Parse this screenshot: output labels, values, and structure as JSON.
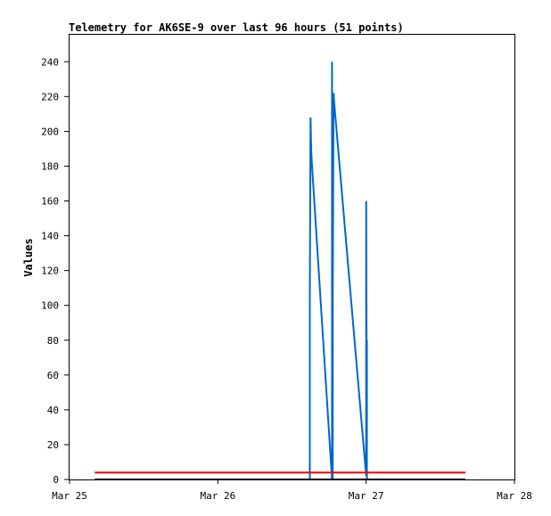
{
  "chart_data": {
    "type": "line",
    "title": "Telemetry for AK6SE-9 over last 96 hours (51 points)",
    "xlabel": "",
    "ylabel": "Values",
    "x_ticks": [
      "Mar 25",
      "Mar 26",
      "Mar 27",
      "Mar 28"
    ],
    "x_range_days": [
      0,
      3
    ],
    "ylim": [
      0,
      256
    ],
    "y_ticks": [
      0,
      20,
      40,
      60,
      80,
      100,
      120,
      140,
      160,
      180,
      200,
      220,
      240
    ],
    "grid": false,
    "legend": "none",
    "series": [
      {
        "color": "#0066cc",
        "points": [
          [
            1.62,
            0
          ],
          [
            1.62,
            104
          ],
          [
            1.625,
            208
          ],
          [
            1.63,
            188
          ],
          [
            1.635,
            180
          ],
          [
            1.77,
            0
          ],
          [
            1.77,
            240
          ],
          [
            1.775,
            0
          ],
          [
            1.775,
            104
          ],
          [
            1.78,
            222
          ],
          [
            1.785,
            216
          ],
          [
            2.0,
            2
          ],
          [
            2.0,
            160
          ],
          [
            2.005,
            0
          ],
          [
            2.005,
            80
          ]
        ]
      },
      {
        "color": "#ff0000",
        "points": [
          [
            0.17,
            4
          ],
          [
            2.67,
            4
          ]
        ]
      },
      {
        "color": "#000000",
        "points": [
          [
            0.17,
            0
          ],
          [
            2.67,
            0
          ]
        ]
      }
    ]
  }
}
